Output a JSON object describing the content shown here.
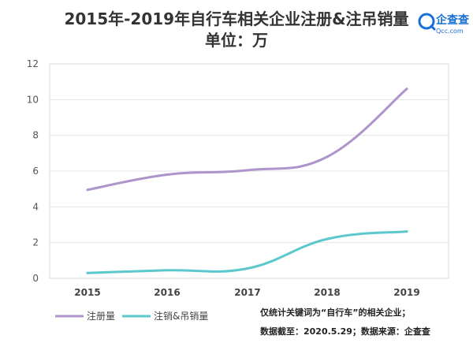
{
  "chart_data": {
    "type": "line",
    "title": "2015年-2019年自行车相关企业注册&注吊销量",
    "subtitle": "单位：万",
    "categories": [
      "2015",
      "2016",
      "2017",
      "2018",
      "2019"
    ],
    "series": [
      {
        "name": "注册量",
        "color": "#ad94cb",
        "values": [
          4.95,
          5.8,
          6.05,
          6.8,
          10.6
        ]
      },
      {
        "name": "注销&吊销量",
        "color": "#5bc8cd",
        "values": [
          0.3,
          0.45,
          0.55,
          2.2,
          2.62
        ]
      }
    ],
    "ylim": [
      0,
      12
    ],
    "yticks": [
      "0",
      "2",
      "4",
      "6",
      "8",
      "10",
      "12"
    ],
    "grid": true,
    "legend": "bottom-left",
    "xlabel": "",
    "ylabel": ""
  },
  "notes": {
    "line1": "仅统计关键词为“自行车”的相关企业；",
    "line2": "数据截至：2020.5.29；数据来源：企查查"
  },
  "logo": {
    "name": "企查查",
    "domain": "Qcc.com"
  }
}
